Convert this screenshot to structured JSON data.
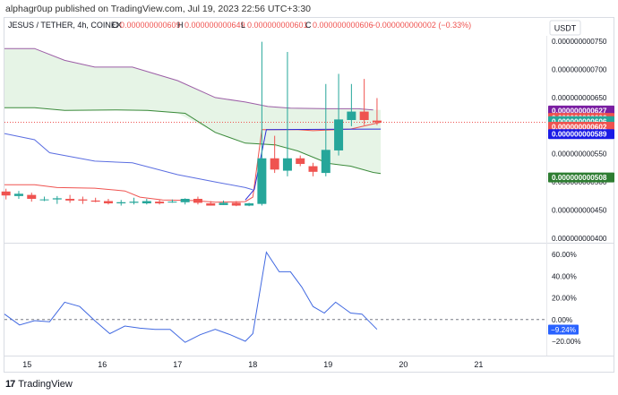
{
  "publish_line": "alphagr0up published on TradingView.com, Jul 19, 2023 22:56 UTC+3:30",
  "footer": {
    "logo_glyph": "17",
    "brand": "TradingView"
  },
  "legend": {
    "symbol": "JESUS / TETHER, 4h, COINEX",
    "o_label": "O",
    "o_value": "0.000000000609",
    "h_label": "H",
    "h_value": "0.000000000649",
    "l_label": "L",
    "l_value": "0.000000000601",
    "c_label": "C",
    "c_value": "0.000000000606",
    "change": "−0.000000000002 (−0.33%)"
  },
  "currency_badge": "USDT",
  "colors": {
    "up": "#26a69a",
    "down": "#ef5350",
    "cloud_fill": "#e6f4e6",
    "upper_band": "#9c5ea6",
    "middle_band": "#3a8a3a",
    "lower_band": "#5b6ee1",
    "red_line": "#ef5350",
    "blue_line": "#2a2ad9",
    "oscillator": "#4169e1"
  },
  "chart_data": [
    {
      "type": "candlestick",
      "price_axis_ticks": [
        "0.000000000750",
        "0.000000000700",
        "0.000000000650",
        "0.000000000600",
        "0.000000000550",
        "0.000000000500",
        "0.000000000450",
        "0.000000000400"
      ],
      "price_tick_values": [
        0.75,
        0.7,
        0.65,
        0.6,
        0.55,
        0.5,
        0.45,
        0.4
      ],
      "ylim_e9": [
        0.395,
        0.76
      ],
      "x_axis_labels": [
        "15",
        "16",
        "17",
        "18",
        "19",
        "20",
        "21"
      ],
      "x_axis_days": [
        15,
        16,
        17,
        18,
        19,
        20,
        21
      ],
      "xlim_days": [
        14.7,
        21.9
      ],
      "candles_e9": [
        {
          "t": 14.72,
          "o": 0.483,
          "h": 0.488,
          "l": 0.469,
          "c": 0.476
        },
        {
          "t": 14.89,
          "o": 0.475,
          "h": 0.484,
          "l": 0.47,
          "c": 0.479
        },
        {
          "t": 15.06,
          "o": 0.477,
          "h": 0.481,
          "l": 0.465,
          "c": 0.47
        },
        {
          "t": 15.23,
          "o": 0.469,
          "h": 0.474,
          "l": 0.466,
          "c": 0.469
        },
        {
          "t": 15.4,
          "o": 0.469,
          "h": 0.475,
          "l": 0.461,
          "c": 0.471
        },
        {
          "t": 15.57,
          "o": 0.47,
          "h": 0.477,
          "l": 0.463,
          "c": 0.467
        },
        {
          "t": 15.74,
          "o": 0.469,
          "h": 0.474,
          "l": 0.461,
          "c": 0.467
        },
        {
          "t": 15.91,
          "o": 0.467,
          "h": 0.472,
          "l": 0.464,
          "c": 0.465
        },
        {
          "t": 16.08,
          "o": 0.466,
          "h": 0.47,
          "l": 0.46,
          "c": 0.462
        },
        {
          "t": 16.25,
          "o": 0.462,
          "h": 0.468,
          "l": 0.458,
          "c": 0.464
        },
        {
          "t": 16.42,
          "o": 0.463,
          "h": 0.472,
          "l": 0.46,
          "c": 0.465
        },
        {
          "t": 16.59,
          "o": 0.462,
          "h": 0.47,
          "l": 0.46,
          "c": 0.466
        },
        {
          "t": 16.76,
          "o": 0.465,
          "h": 0.468,
          "l": 0.46,
          "c": 0.462
        },
        {
          "t": 16.93,
          "o": 0.465,
          "h": 0.469,
          "l": 0.463,
          "c": 0.465
        },
        {
          "t": 17.1,
          "o": 0.464,
          "h": 0.471,
          "l": 0.46,
          "c": 0.47
        },
        {
          "t": 17.27,
          "o": 0.47,
          "h": 0.474,
          "l": 0.46,
          "c": 0.463
        },
        {
          "t": 17.44,
          "o": 0.462,
          "h": 0.466,
          "l": 0.458,
          "c": 0.458
        },
        {
          "t": 17.61,
          "o": 0.459,
          "h": 0.467,
          "l": 0.459,
          "c": 0.463
        },
        {
          "t": 17.78,
          "o": 0.463,
          "h": 0.466,
          "l": 0.457,
          "c": 0.458
        },
        {
          "t": 17.95,
          "o": 0.458,
          "h": 0.463,
          "l": 0.457,
          "c": 0.462
        },
        {
          "t": 18.12,
          "o": 0.461,
          "h": 0.749,
          "l": 0.458,
          "c": 0.542
        },
        {
          "t": 18.29,
          "o": 0.542,
          "h": 0.582,
          "l": 0.516,
          "c": 0.522
        },
        {
          "t": 18.46,
          "o": 0.52,
          "h": 0.731,
          "l": 0.51,
          "c": 0.542
        },
        {
          "t": 18.63,
          "o": 0.542,
          "h": 0.547,
          "l": 0.528,
          "c": 0.532
        },
        {
          "t": 18.8,
          "o": 0.528,
          "h": 0.534,
          "l": 0.51,
          "c": 0.518
        },
        {
          "t": 18.97,
          "o": 0.516,
          "h": 0.674,
          "l": 0.51,
          "c": 0.557
        },
        {
          "t": 19.14,
          "o": 0.556,
          "h": 0.692,
          "l": 0.547,
          "c": 0.611
        },
        {
          "t": 19.31,
          "o": 0.61,
          "h": 0.674,
          "l": 0.599,
          "c": 0.625
        },
        {
          "t": 19.48,
          "o": 0.625,
          "h": 0.683,
          "l": 0.601,
          "c": 0.61
        },
        {
          "t": 19.65,
          "o": 0.609,
          "h": 0.649,
          "l": 0.601,
          "c": 0.606
        }
      ],
      "upper_band_e9": [
        [
          14.7,
          0.737
        ],
        [
          15.1,
          0.737
        ],
        [
          15.5,
          0.716
        ],
        [
          15.9,
          0.704
        ],
        [
          16.4,
          0.704
        ],
        [
          17.0,
          0.68
        ],
        [
          17.5,
          0.65
        ],
        [
          17.9,
          0.642
        ],
        [
          18.2,
          0.634
        ],
        [
          18.5,
          0.631
        ],
        [
          19.0,
          0.63
        ],
        [
          19.4,
          0.63
        ],
        [
          19.6,
          0.628
        ]
      ],
      "middle_band_e9": [
        [
          14.7,
          0.632
        ],
        [
          15.1,
          0.632
        ],
        [
          15.5,
          0.627
        ],
        [
          16.2,
          0.628
        ],
        [
          16.6,
          0.627
        ],
        [
          17.1,
          0.622
        ],
        [
          17.5,
          0.588
        ],
        [
          17.9,
          0.569
        ],
        [
          18.3,
          0.566
        ],
        [
          18.6,
          0.555
        ],
        [
          19.0,
          0.533
        ],
        [
          19.3,
          0.528
        ],
        [
          19.6,
          0.517
        ],
        [
          19.7,
          0.515
        ]
      ],
      "lower_band_e9": [
        [
          14.7,
          0.586
        ],
        [
          15.1,
          0.575
        ],
        [
          15.3,
          0.552
        ],
        [
          15.9,
          0.537
        ],
        [
          16.4,
          0.534
        ],
        [
          17.0,
          0.513
        ],
        [
          17.5,
          0.5
        ],
        [
          17.9,
          0.49
        ],
        [
          18.0,
          0.486
        ]
      ],
      "red_line_e9": [
        [
          14.7,
          0.495
        ],
        [
          15.1,
          0.495
        ],
        [
          15.4,
          0.49
        ],
        [
          15.9,
          0.489
        ],
        [
          16.3,
          0.484
        ],
        [
          16.5,
          0.473
        ],
        [
          16.8,
          0.468
        ],
        [
          17.2,
          0.467
        ],
        [
          17.5,
          0.464
        ],
        [
          17.9,
          0.465
        ],
        [
          18.0,
          0.473
        ],
        [
          18.12,
          0.593
        ],
        [
          18.6,
          0.593
        ],
        [
          18.8,
          0.591
        ],
        [
          18.97,
          0.592
        ],
        [
          19.3,
          0.594
        ],
        [
          19.5,
          0.6
        ],
        [
          19.7,
          0.606
        ]
      ],
      "blue_line_e9": [
        [
          17.9,
          0.468
        ],
        [
          18.02,
          0.487
        ],
        [
          18.18,
          0.593
        ],
        [
          19.7,
          0.594
        ]
      ],
      "cloud_e9": [
        {
          "x": 14.7,
          "top": 0.737,
          "bottom": 0.632
        },
        {
          "x": 15.1,
          "top": 0.737,
          "bottom": 0.632
        },
        {
          "x": 15.5,
          "top": 0.716,
          "bottom": 0.627
        },
        {
          "x": 15.9,
          "top": 0.704,
          "bottom": 0.628
        },
        {
          "x": 16.4,
          "top": 0.704,
          "bottom": 0.628
        },
        {
          "x": 17.0,
          "top": 0.68,
          "bottom": 0.622
        },
        {
          "x": 17.5,
          "top": 0.65,
          "bottom": 0.588
        },
        {
          "x": 17.9,
          "top": 0.642,
          "bottom": 0.569
        },
        {
          "x": 18.2,
          "top": 0.634,
          "bottom": 0.566
        },
        {
          "x": 18.6,
          "top": 0.631,
          "bottom": 0.555
        },
        {
          "x": 19.0,
          "top": 0.63,
          "bottom": 0.533
        },
        {
          "x": 19.3,
          "top": 0.63,
          "bottom": 0.528
        },
        {
          "x": 19.7,
          "top": 0.628,
          "bottom": 0.515
        }
      ],
      "last_price_e9": 0.606,
      "axis_tags": [
        {
          "label": "0.000000000627",
          "value": 0.627,
          "color": "#7b1fa2"
        },
        {
          "label": "0.000000000606",
          "value": 0.613,
          "color": "#ef5350",
          "sub": "33:17"
        },
        {
          "label": "0.000000000606",
          "value": 0.606,
          "color": "#26a69a",
          "offset": 0.002
        },
        {
          "label": "0.000000000602",
          "value": 0.602,
          "color": "#ef5350",
          "offset": -0.004
        },
        {
          "label": "0.000000000589",
          "value": 0.589,
          "color": "#1a1ae6",
          "offset": -0.004
        },
        {
          "label": "0.000000000508",
          "value": 0.508,
          "color": "#2e7d32"
        }
      ]
    },
    {
      "type": "line",
      "oscillator_ticks": [
        "60.00%",
        "40.00%",
        "20.00%",
        "0.00%",
        "−20.00%"
      ],
      "oscillator_tick_values": [
        60,
        40,
        20,
        0,
        -20
      ],
      "ylim": [
        -26,
        68
      ],
      "series": [
        {
          "values": [
            [
              14.7,
              5
            ],
            [
              14.9,
              -5
            ],
            [
              15.1,
              -1
            ],
            [
              15.3,
              -2
            ],
            [
              15.5,
              16
            ],
            [
              15.7,
              12
            ],
            [
              15.9,
              -1
            ],
            [
              16.1,
              -13
            ],
            [
              16.3,
              -6
            ],
            [
              16.5,
              -8
            ],
            [
              16.7,
              -9
            ],
            [
              16.9,
              -9
            ],
            [
              17.1,
              -21
            ],
            [
              17.3,
              -14
            ],
            [
              17.5,
              -9
            ],
            [
              17.7,
              -14
            ],
            [
              17.9,
              -20
            ],
            [
              18.0,
              -13
            ],
            [
              18.18,
              62
            ],
            [
              18.35,
              44
            ],
            [
              18.5,
              44
            ],
            [
              18.65,
              30
            ],
            [
              18.8,
              12
            ],
            [
              18.95,
              6
            ],
            [
              19.1,
              16
            ],
            [
              19.3,
              6
            ],
            [
              19.45,
              5
            ],
            [
              19.65,
              -9
            ]
          ]
        }
      ],
      "current_tag": {
        "label": "−9.24%",
        "value": -9.24,
        "color": "#2962ff"
      }
    }
  ]
}
